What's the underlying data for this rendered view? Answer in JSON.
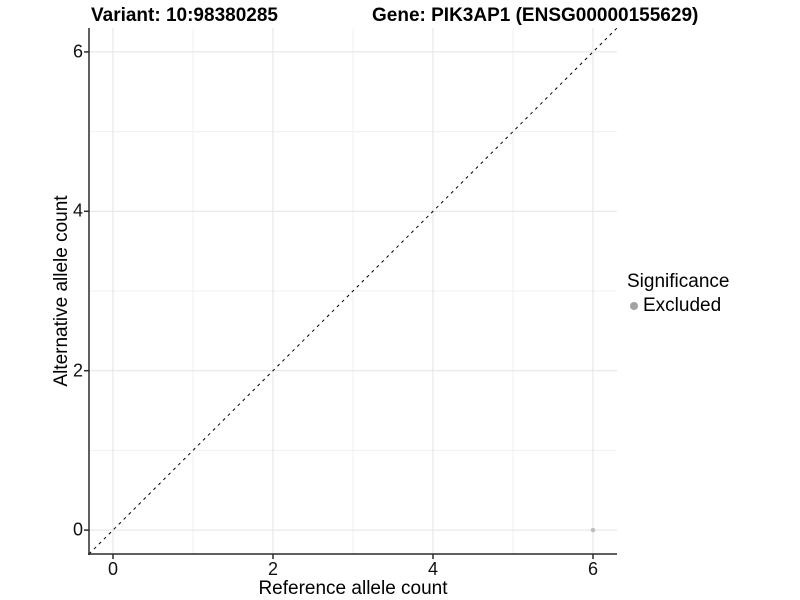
{
  "header": {
    "variant_title": "Variant: 10:98380285",
    "gene_title": "Gene: PIK3AP1 (ENSG00000155629)"
  },
  "chart_data": {
    "type": "scatter",
    "xlabel": "Reference allele count",
    "ylabel": "Alternative allele count",
    "xlim": [
      -0.3,
      6.3
    ],
    "ylim": [
      -0.3,
      6.3
    ],
    "x_major_ticks": [
      0,
      2,
      4,
      6
    ],
    "y_major_ticks": [
      0,
      2,
      4,
      6
    ],
    "x_minor_ticks": [
      1,
      3,
      5
    ],
    "y_minor_ticks": [
      1,
      3,
      5
    ],
    "grid": true,
    "reference_line": {
      "type": "identity_y_equals_x",
      "style": "dashed",
      "color": "#000000"
    },
    "series": [
      {
        "name": "Excluded",
        "color": "#bdbdbd",
        "point_radius": 2.2,
        "points": [
          {
            "x": 6,
            "y": 0
          }
        ]
      }
    ],
    "legend": {
      "position": "right",
      "title": "Significance",
      "items": [
        {
          "label": "Excluded",
          "color": "#a2a2a2"
        }
      ]
    }
  },
  "colors": {
    "background": "#ffffff",
    "grid_major": "#e3e3e3",
    "grid_minor": "#f1f1f1",
    "axis_line": "#2b2b2b",
    "tick_mark": "#2b2b2b",
    "reference_line": "#000000"
  }
}
